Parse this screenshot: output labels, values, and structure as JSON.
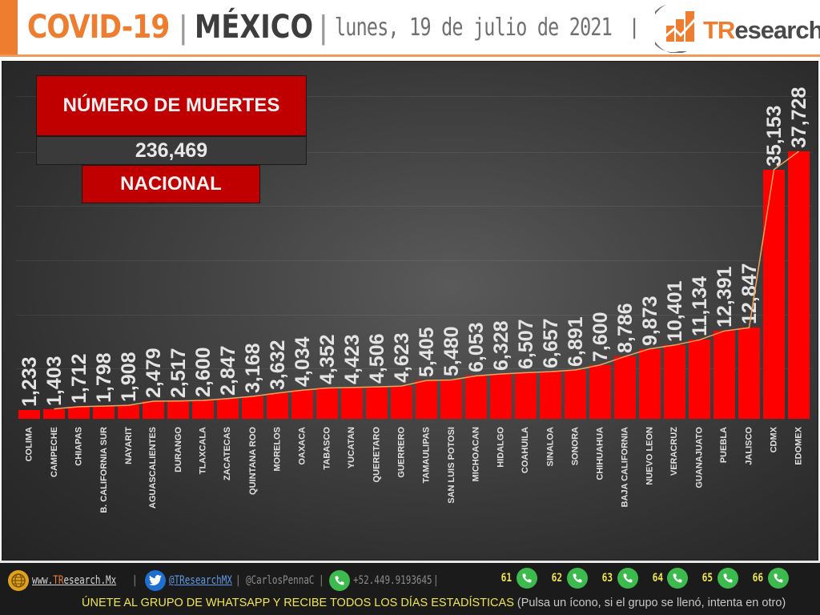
{
  "header": {
    "title_primary": "COVID-19",
    "separator": "|",
    "title_country": "MÉXICO",
    "date": "lunes, 19 de julio de 2021",
    "trailing_separator": "|",
    "logo": {
      "prefix": "TR",
      "suffix": "esearch",
      "icon": "bar-chart-swoosh-icon"
    }
  },
  "kpi": {
    "title": "NÚMERO DE MUERTES",
    "value": "236,469",
    "scope": "NACIONAL"
  },
  "colors": {
    "accent_orange": "#ee7d2f",
    "bar_red": "#ff0000",
    "kpi_red": "#c00000",
    "trend_line": "#f5a35a",
    "cta_yellow": "#f0e64a"
  },
  "chart_data": {
    "type": "bar",
    "title": "NÚMERO DE MUERTES — NACIONAL",
    "subtitle": "COVID-19 | MÉXICO | lunes, 19 de julio de 2021",
    "xlabel": "",
    "ylabel": "",
    "ylim": [
      0,
      38000
    ],
    "grid": true,
    "legend": null,
    "trendline": true,
    "categories": [
      "COLIMA",
      "CAMPECHE",
      "CHIAPAS",
      "B. CALIFORNIA SUR",
      "NAYARIT",
      "AGUASCALIENTES",
      "DURANGO",
      "TLAXCALA",
      "ZACATECAS",
      "QUINTANA ROO",
      "MORELOS",
      "OAXACA",
      "TABASCO",
      "YUCATAN",
      "QUERETARO",
      "GUERRERO",
      "TAMAULIPAS",
      "SAN LUIS POTOSI",
      "MICHOACAN",
      "HIDALGO",
      "COAHUILA",
      "SINALOA",
      "SONORA",
      "CHIHUAHUA",
      "BAJA CALIFORNIA",
      "NUEVO LEON",
      "VERACRUZ",
      "GUANAJUATO",
      "PUEBLA",
      "JALISCO",
      "CDMX",
      "EDOMEX"
    ],
    "values": [
      1233,
      1403,
      1712,
      1798,
      1908,
      2479,
      2517,
      2600,
      2847,
      3168,
      3632,
      4034,
      4352,
      4423,
      4506,
      4623,
      5405,
      5480,
      6053,
      6328,
      6507,
      6657,
      6891,
      7600,
      8786,
      9873,
      10401,
      11134,
      12391,
      12847,
      35153,
      37728
    ],
    "value_labels": [
      "1,233",
      "1,403",
      "1,712",
      "1,798",
      "1,908",
      "2,479",
      "2,517",
      "2,600",
      "2,847",
      "3,168",
      "3,632",
      "4,034",
      "4,352",
      "4,423",
      "4,506",
      "4,623",
      "5,405",
      "5,480",
      "6,053",
      "6,328",
      "6,507",
      "6,657",
      "6,891",
      "7,600",
      "8,786",
      "9,873",
      "10,401",
      "11,134",
      "12,391",
      "12,847",
      "35,153",
      "37,728"
    ]
  },
  "footer": {
    "website_prefix": "www.",
    "website_brand": "TR",
    "website_suffix": "esearch.Mx",
    "twitter_handle": "@TResearchMX",
    "personal_handle": "@CarlosPennaC",
    "phone": "+52.449.9193645",
    "sep": "|",
    "whatsapp_groups": [
      "61",
      "62",
      "63",
      "64",
      "65",
      "66"
    ],
    "cta": "ÚNETE AL GRUPO DE WHATSAPP Y RECIBE TODOS LOS DÍAS ESTADÍSTICAS",
    "hint": "(Pulsa un ícono, si el grupo se llenó, intenta en otro)"
  }
}
